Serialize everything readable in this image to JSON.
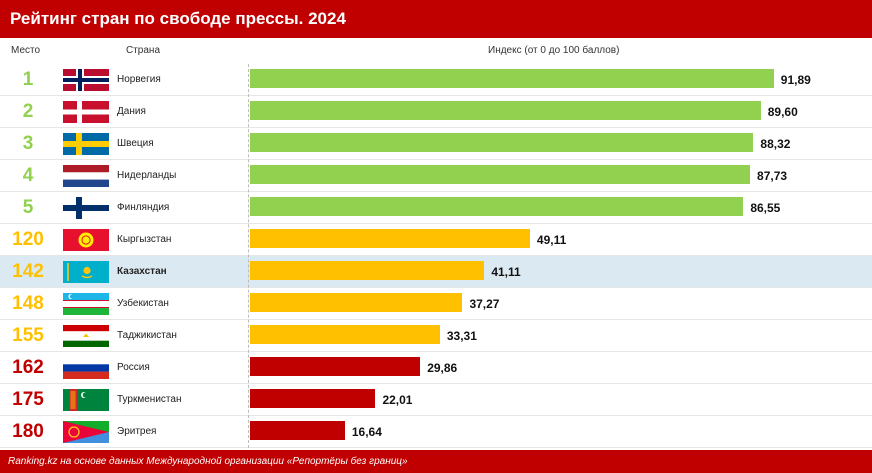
{
  "title": "Рейтинг стран по свободе прессы. 2024",
  "headers": {
    "rank": "Место",
    "country": "Страна",
    "index": "Индекс (от 0 до 100 баллов)"
  },
  "footer": "Ranking.kz на основе данных Международной организации «Репортёры без границ»",
  "colors": {
    "green": "#92d050",
    "yellow": "#ffc000",
    "red": "#c00000",
    "highlight": "#dbeaf2"
  },
  "chart_data": {
    "type": "bar",
    "orientation": "horizontal",
    "categories": [
      "Норвегия",
      "Дания",
      "Швеция",
      "Нидерланды",
      "Финляндия",
      "Кыргызстан",
      "Казахстан",
      "Узбекистан",
      "Таджикистан",
      "Россия",
      "Туркменистан",
      "Эритрея"
    ],
    "ranks": [
      "1",
      "2",
      "3",
      "4",
      "5",
      "120",
      "142",
      "148",
      "155",
      "162",
      "175",
      "180"
    ],
    "values": [
      91.89,
      89.6,
      88.32,
      87.73,
      86.55,
      49.11,
      41.11,
      37.27,
      33.31,
      29.86,
      22.01,
      16.64
    ],
    "value_labels": [
      "91,89",
      "89,60",
      "88,32",
      "87,73",
      "86,55",
      "49,11",
      "41,11",
      "37,27",
      "33,31",
      "29,86",
      "22,01",
      "16,64"
    ],
    "color_groups": [
      "green",
      "green",
      "green",
      "green",
      "green",
      "yellow",
      "yellow",
      "yellow",
      "yellow",
      "red",
      "red",
      "red"
    ],
    "flags": [
      "flag-norway-icon",
      "flag-denmark-icon",
      "flag-sweden-icon",
      "flag-netherlands-icon",
      "flag-finland-icon",
      "flag-kyrgyzstan-icon",
      "flag-kazakhstan-icon",
      "flag-uzbekistan-icon",
      "flag-tajikistan-icon",
      "flag-russia-icon",
      "flag-turkmenistan-icon",
      "flag-eritrea-icon"
    ],
    "highlighted": "Казахстан",
    "xlim": [
      0,
      100
    ],
    "grid": false
  }
}
